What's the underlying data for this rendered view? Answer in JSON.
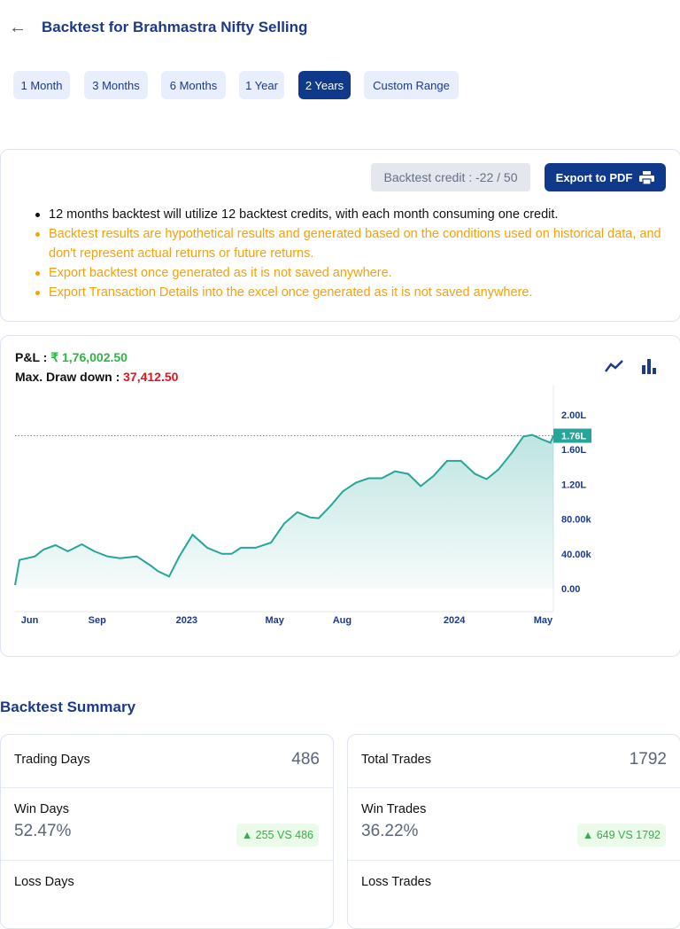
{
  "header": {
    "title": "Backtest for Brahmastra Nifty Selling",
    "back_icon": "arrow-left-icon"
  },
  "periods": [
    {
      "label": "1 Month",
      "active": false
    },
    {
      "label": "3 Months",
      "active": false
    },
    {
      "label": "6 Months",
      "active": false
    },
    {
      "label": "1 Year",
      "active": false
    },
    {
      "label": "2 Years",
      "active": true
    },
    {
      "label": "Custom Range",
      "active": false
    }
  ],
  "info": {
    "credit": "Backtest credit : -22 / 50",
    "export_label": "Export to PDF",
    "export_icon": "printer-icon",
    "notes": [
      "12 months backtest will utilize 12 backtest credits, with each month consuming one credit.",
      "Backtest results are hypothetical results and generated based on the conditions used on historical data, and don't represent actual returns or future returns.",
      "Export backtest once generated as it is not saved anywhere.",
      "Export Transaction Details into the excel once generated as it is not saved anywhere."
    ]
  },
  "pnl": {
    "label": "P&L :",
    "value": "₹ 1,76,002.50",
    "dd_label": "Max. Draw down :",
    "dd_value": "37,412.50"
  },
  "colors": {
    "accent": "#0f3a8c",
    "line": "#26a69a",
    "profit": "#2fb344",
    "loss": "#e0141e",
    "warning": "#f5a20a"
  },
  "chart_data": {
    "type": "area",
    "ylim": [
      0,
      200000
    ],
    "y_ticks": [
      {
        "value": 0,
        "label": "0.00"
      },
      {
        "value": 40000,
        "label": "40.00k"
      },
      {
        "value": 80000,
        "label": "80.00k"
      },
      {
        "value": 120000,
        "label": "1.20L"
      },
      {
        "value": 160000,
        "label": "1.60L"
      },
      {
        "value": 200000,
        "label": "2.00L"
      }
    ],
    "x_ticks": [
      {
        "label": "Jun",
        "date": "2022-06-01"
      },
      {
        "label": "Sep",
        "date": "2022-09-01"
      },
      {
        "label": "2023",
        "date": "2023-01-01"
      },
      {
        "label": "May",
        "date": "2023-05-01"
      },
      {
        "label": "Aug",
        "date": "2023-08-01"
      },
      {
        "label": "2024",
        "date": "2024-01-01"
      },
      {
        "label": "May",
        "date": "2024-05-01"
      }
    ],
    "last_value_label": "1.76L",
    "last_value": 176002.5,
    "points": [
      [
        "2022-05-12",
        4000
      ],
      [
        "2022-05-18",
        33000
      ],
      [
        "2022-06-08",
        37000
      ],
      [
        "2022-06-20",
        45000
      ],
      [
        "2022-07-06",
        50000
      ],
      [
        "2022-07-23",
        43000
      ],
      [
        "2022-08-11",
        51000
      ],
      [
        "2022-08-28",
        43000
      ],
      [
        "2022-09-15",
        37000
      ],
      [
        "2022-10-02",
        35000
      ],
      [
        "2022-10-25",
        37000
      ],
      [
        "2022-11-12",
        27000
      ],
      [
        "2022-11-23",
        20000
      ],
      [
        "2022-12-08",
        14000
      ],
      [
        "2022-12-22",
        37000
      ],
      [
        "2023-01-09",
        62000
      ],
      [
        "2023-01-29",
        47000
      ],
      [
        "2023-02-18",
        40000
      ],
      [
        "2023-03-03",
        40000
      ],
      [
        "2023-03-16",
        47000
      ],
      [
        "2023-04-05",
        47000
      ],
      [
        "2023-04-26",
        53000
      ],
      [
        "2023-05-14",
        75000
      ],
      [
        "2023-06-01",
        88000
      ],
      [
        "2023-06-18",
        82000
      ],
      [
        "2023-06-30",
        81000
      ],
      [
        "2023-07-17",
        96000
      ],
      [
        "2023-08-02",
        112000
      ],
      [
        "2023-08-20",
        122000
      ],
      [
        "2023-09-06",
        127000
      ],
      [
        "2023-09-24",
        127000
      ],
      [
        "2023-10-12",
        135000
      ],
      [
        "2023-10-30",
        132000
      ],
      [
        "2023-11-16",
        118000
      ],
      [
        "2023-12-04",
        130000
      ],
      [
        "2023-12-22",
        147000
      ],
      [
        "2024-01-10",
        147000
      ],
      [
        "2024-01-29",
        132000
      ],
      [
        "2024-02-14",
        126000
      ],
      [
        "2024-03-01",
        137000
      ],
      [
        "2024-03-20",
        157000
      ],
      [
        "2024-04-04",
        175000
      ],
      [
        "2024-04-16",
        177000
      ],
      [
        "2024-04-29",
        172000
      ],
      [
        "2024-05-11",
        168000
      ],
      [
        "2024-05-15",
        176002.5
      ]
    ]
  },
  "chart_controls": {
    "line_icon": "line-chart-icon",
    "bar_icon": "bar-chart-icon"
  },
  "summary": {
    "title": "Backtest Summary",
    "left": {
      "total_label": "Trading Days",
      "total": "486",
      "win_label": "Win Days",
      "win_pct": "52.47%",
      "win_badge": "▲ 255 VS 486",
      "loss_label": "Loss Days"
    },
    "right": {
      "total_label": "Total Trades",
      "total": "1792",
      "win_label": "Win Trades",
      "win_pct": "36.22%",
      "win_badge": "▲ 649 VS 1792",
      "loss_label": "Loss Trades"
    }
  }
}
